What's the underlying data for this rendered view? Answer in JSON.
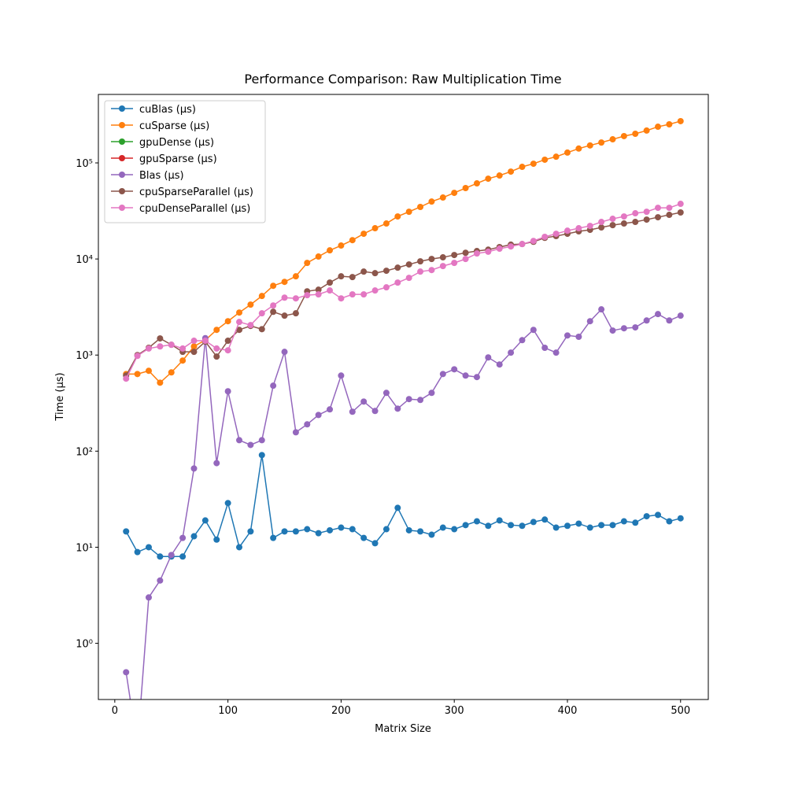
{
  "chart_data": {
    "type": "line",
    "title": "Performance Comparison: Raw Multiplication Time",
    "xlabel": "Matrix Size",
    "ylabel": "Time (μs)",
    "log_y": true,
    "legend": "upper left",
    "x": [
      10,
      20,
      30,
      40,
      50,
      60,
      70,
      80,
      90,
      100,
      110,
      120,
      130,
      140,
      150,
      160,
      170,
      180,
      190,
      200,
      210,
      220,
      230,
      240,
      250,
      260,
      270,
      280,
      290,
      300,
      310,
      320,
      330,
      340,
      350,
      360,
      370,
      380,
      390,
      400,
      410,
      420,
      430,
      440,
      450,
      460,
      470,
      480,
      490,
      500
    ],
    "xlim": [
      -14.5,
      524.5
    ],
    "xticks": [
      0,
      100,
      200,
      300,
      400,
      500
    ],
    "ylim": [
      0.26,
      516000
    ],
    "yticks": [
      {
        "value": 1,
        "label": "10⁰"
      },
      {
        "value": 10,
        "label": "10¹"
      },
      {
        "value": 100,
        "label": "10²"
      },
      {
        "value": 1000,
        "label": "10³"
      },
      {
        "value": 10000,
        "label": "10⁴"
      },
      {
        "value": 100000,
        "label": "10⁵"
      }
    ],
    "series": [
      {
        "name": "cuBlas (μs)",
        "color": "#1f77b4",
        "values": [
          14.6,
          8.9,
          10,
          8.0,
          8.0,
          8.0,
          13,
          19,
          12,
          28.8,
          10,
          14.6,
          91,
          12.5,
          14.6,
          14.6,
          15.4,
          14,
          15,
          16,
          15.4,
          12.5,
          11,
          15.4,
          25.7,
          15,
          14.6,
          13.5,
          16,
          15.4,
          17,
          18.6,
          16.7,
          19,
          17,
          16.7,
          18.3,
          19.4,
          16,
          16.7,
          17.6,
          16,
          17,
          17,
          18.6,
          18,
          21,
          21.7,
          18.6,
          20
        ]
      },
      {
        "name": "cuSparse (μs)",
        "color": "#ff7f0e",
        "values": [
          635,
          635,
          686,
          516,
          660,
          877,
          1230,
          1430,
          1830,
          2250,
          2770,
          3350,
          4120,
          5260,
          5780,
          6600,
          9100,
          10600,
          12300,
          13800,
          15700,
          18300,
          20900,
          23400,
          27700,
          31000,
          34800,
          39600,
          43600,
          48800,
          54700,
          61200,
          68500,
          73900,
          81200,
          91000,
          98000,
          108000,
          116000,
          128000,
          141000,
          152000,
          163000,
          176000,
          190000,
          201000,
          217000,
          238000,
          252000,
          272000
        ]
      },
      {
        "name": "gpuDense (μs)",
        "color": "#2ca02c",
        "values": [
          null,
          null,
          null,
          null,
          null,
          null,
          null,
          null,
          null,
          null,
          null,
          null,
          null,
          null,
          null,
          null,
          null,
          null,
          null,
          null,
          null,
          null,
          null,
          null,
          null,
          null,
          null,
          null,
          null,
          null,
          null,
          null,
          null,
          null,
          null,
          null,
          null,
          null,
          null,
          null,
          null,
          null,
          null,
          null,
          null,
          null,
          null,
          null,
          null,
          null
        ]
      },
      {
        "name": "gpuSparse (μs)",
        "color": "#d62728",
        "values": [
          null,
          null,
          null,
          null,
          null,
          null,
          null,
          null,
          null,
          null,
          null,
          null,
          null,
          null,
          null,
          null,
          null,
          null,
          null,
          null,
          null,
          null,
          null,
          null,
          null,
          null,
          null,
          null,
          null,
          null,
          null,
          null,
          null,
          null,
          null,
          null,
          null,
          null,
          null,
          null,
          null,
          null,
          null,
          null,
          null,
          null,
          null,
          null,
          null,
          null
        ]
      },
      {
        "name": "Blas (μs)",
        "color": "#9467bd",
        "values": [
          0.5,
          0,
          3.0,
          4.5,
          8.3,
          12.5,
          66,
          1500,
          75,
          420,
          130,
          116,
          130,
          480,
          1080,
          157,
          190,
          238,
          272,
          612,
          257,
          328,
          262,
          404,
          277,
          348,
          341,
          404,
          635,
          711,
          612,
          590,
          945,
          798,
          1060,
          1430,
          1830,
          1190,
          1060,
          1600,
          1550,
          2250,
          2990,
          1800,
          1900,
          1940,
          2290,
          2670,
          2290,
          2570
        ]
      },
      {
        "name": "cpuSparseParallel (μs)",
        "color": "#8c564b",
        "values": [
          612,
          1000,
          1190,
          1490,
          1280,
          1080,
          1080,
          1380,
          965,
          1410,
          1830,
          2010,
          1860,
          2820,
          2570,
          2720,
          4610,
          4790,
          5680,
          6600,
          6480,
          7390,
          7120,
          7540,
          8120,
          8770,
          9450,
          10000,
          10400,
          11000,
          11600,
          12100,
          12500,
          13300,
          14100,
          14300,
          15100,
          16600,
          17300,
          18300,
          19400,
          20100,
          21300,
          22500,
          23400,
          24300,
          25700,
          27200,
          28800,
          30500
        ]
      },
      {
        "name": "cpuDenseParallel (μs)",
        "color": "#e377c2",
        "values": [
          568,
          980,
          1170,
          1230,
          1280,
          1170,
          1410,
          1410,
          1170,
          1120,
          2210,
          2050,
          2720,
          3280,
          3960,
          3890,
          4200,
          4280,
          4700,
          3890,
          4280,
          4280,
          4700,
          5070,
          5680,
          6360,
          7390,
          7670,
          8440,
          9100,
          10000,
          11400,
          11900,
          12800,
          13500,
          14300,
          15400,
          17000,
          18300,
          19700,
          20900,
          22100,
          24300,
          26200,
          27700,
          29900,
          31000,
          34100,
          34100,
          37500
        ]
      }
    ]
  }
}
